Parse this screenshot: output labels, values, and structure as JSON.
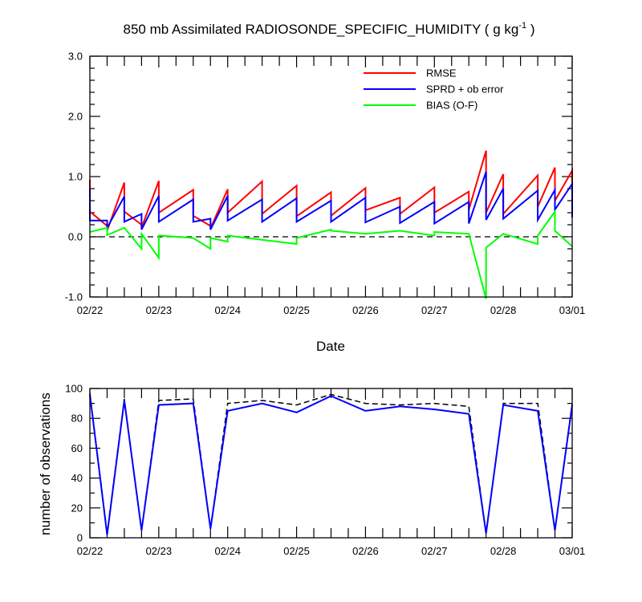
{
  "title_main": "850 mb Assimilated RADIOSONDE_SPECIFIC_HUMIDITY ( g kg",
  "title_sup": "-1",
  "title_end": " )",
  "x_axis_label": "Date",
  "colors": {
    "rmse": "#ff0000",
    "sprd": "#0000ff",
    "bias": "#00ff00",
    "obs_used": "#0000ff",
    "obs_possible": "#000000"
  },
  "chart_data": [
    {
      "type": "line",
      "title": "850 mb Assimilated RADIOSONDE_SPECIFIC_HUMIDITY ( g kg-1 )",
      "xlabel": "Date",
      "ylabel": "",
      "xlim": [
        0,
        7
      ],
      "ylim": [
        -1.0,
        3.0
      ],
      "y_ticks": [
        -1.0,
        0.0,
        1.0,
        2.0,
        3.0
      ],
      "y_tick_labels": [
        "-1.0",
        "0.0",
        "1.0",
        "2.0",
        "3.0"
      ],
      "x_ticks": [
        0,
        1,
        2,
        3,
        4,
        5,
        6,
        7
      ],
      "x_tick_labels": [
        "02/22",
        "02/23",
        "02/24",
        "02/25",
        "02/26",
        "02/27",
        "02/28",
        "03/01"
      ],
      "reference_line": 0.0,
      "legend_position": "top-right",
      "series": [
        {
          "name": "RMSE",
          "color": "#ff0000",
          "x": [
            0.0,
            0.0,
            0.25,
            0.25,
            0.5,
            0.5,
            0.75,
            0.75,
            1.0,
            1.0,
            1.5,
            1.5,
            1.75,
            1.75,
            2.0,
            2.0,
            2.5,
            2.5,
            3.0,
            3.0,
            3.5,
            3.5,
            4.0,
            4.0,
            4.5,
            4.5,
            5.0,
            5.0,
            5.5,
            5.5,
            5.75,
            5.75,
            6.0,
            6.0,
            6.5,
            6.5,
            6.75,
            6.75,
            7.0,
            7.0
          ],
          "y": [
            0.95,
            0.42,
            0.18,
            0.1,
            0.9,
            0.42,
            0.2,
            0.15,
            0.93,
            0.4,
            0.78,
            0.35,
            0.18,
            0.14,
            0.79,
            0.4,
            0.92,
            0.38,
            0.85,
            0.34,
            0.74,
            0.35,
            0.81,
            0.44,
            0.65,
            0.38,
            0.82,
            0.4,
            0.75,
            0.45,
            1.43,
            0.4,
            1.04,
            0.38,
            1.02,
            0.5,
            1.15,
            0.6,
            1.1,
            0.5
          ]
        },
        {
          "name": "SPRD + ob error",
          "color": "#0000ff",
          "x": [
            0.0,
            0.0,
            0.25,
            0.25,
            0.5,
            0.5,
            0.75,
            0.75,
            1.0,
            1.0,
            1.5,
            1.5,
            1.75,
            1.75,
            2.0,
            2.0,
            2.5,
            2.5,
            3.0,
            3.0,
            3.5,
            3.5,
            4.0,
            4.0,
            4.5,
            4.5,
            5.0,
            5.0,
            5.5,
            5.5,
            5.75,
            5.75,
            6.0,
            6.0,
            6.5,
            6.5,
            6.75,
            6.75,
            7.0,
            7.0
          ],
          "y": [
            0.8,
            0.27,
            0.27,
            0.15,
            0.67,
            0.25,
            0.38,
            0.12,
            0.68,
            0.25,
            0.62,
            0.25,
            0.3,
            0.12,
            0.68,
            0.27,
            0.62,
            0.25,
            0.64,
            0.25,
            0.6,
            0.25,
            0.65,
            0.24,
            0.5,
            0.23,
            0.58,
            0.22,
            0.58,
            0.22,
            1.08,
            0.28,
            0.8,
            0.3,
            0.77,
            0.28,
            0.78,
            0.45,
            0.88,
            0.32
          ]
        },
        {
          "name": "BIAS (O-F)",
          "color": "#00ff00",
          "x": [
            0.0,
            0.25,
            0.25,
            0.5,
            0.75,
            0.75,
            1.0,
            1.0,
            1.5,
            1.75,
            1.75,
            2.0,
            2.0,
            2.5,
            3.0,
            3.0,
            3.5,
            3.5,
            4.0,
            4.0,
            4.5,
            5.0,
            5.0,
            5.5,
            5.75,
            5.75,
            6.0,
            6.5,
            6.5,
            6.75,
            6.75,
            7.0
          ],
          "y": [
            0.08,
            0.15,
            0.03,
            0.15,
            -0.2,
            0.05,
            -0.35,
            0.02,
            -0.02,
            -0.2,
            -0.02,
            -0.08,
            0.02,
            -0.05,
            -0.12,
            -0.02,
            0.12,
            0.1,
            0.05,
            0.05,
            0.1,
            0.02,
            0.08,
            0.05,
            -1.03,
            -0.18,
            0.05,
            -0.12,
            0.02,
            0.42,
            0.1,
            -0.16
          ]
        }
      ]
    },
    {
      "type": "line",
      "title": "",
      "xlabel": "",
      "ylabel": "number of observations",
      "xlim": [
        0,
        7
      ],
      "ylim": [
        0,
        100
      ],
      "y_ticks": [
        0,
        20,
        40,
        60,
        80,
        100
      ],
      "y_tick_labels": [
        "0",
        "20",
        "40",
        "60",
        "80",
        "100"
      ],
      "x_ticks": [
        0,
        1,
        2,
        3,
        4,
        5,
        6,
        7
      ],
      "x_tick_labels": [
        "02/22",
        "02/23",
        "02/24",
        "02/25",
        "02/26",
        "02/27",
        "02/28",
        "03/01"
      ],
      "series": [
        {
          "line_style": "dashed",
          "color": "#000000",
          "x": [
            0.0,
            0.25,
            0.5,
            0.75,
            1.0,
            1.5,
            1.75,
            2.0,
            2.5,
            3.0,
            3.5,
            4.0,
            4.5,
            5.0,
            5.5,
            5.75,
            6.0,
            6.5,
            6.75,
            7.0
          ],
          "y": [
            97,
            3,
            93,
            5,
            92,
            93,
            6,
            90,
            92,
            89,
            96,
            90,
            89,
            90,
            88,
            3,
            90,
            90,
            5,
            90
          ]
        },
        {
          "line_style": "solid",
          "color": "#0000ff",
          "x": [
            0.0,
            0.25,
            0.5,
            0.75,
            1.0,
            1.5,
            1.75,
            2.0,
            2.5,
            3.0,
            3.5,
            4.0,
            4.5,
            5.0,
            5.5,
            5.75,
            6.0,
            6.5,
            6.75,
            7.0
          ],
          "y": [
            96,
            2,
            92,
            5,
            89,
            90,
            6,
            85,
            90,
            84,
            95,
            85,
            88,
            86,
            83,
            3,
            89,
            85,
            5,
            89
          ]
        }
      ]
    }
  ]
}
